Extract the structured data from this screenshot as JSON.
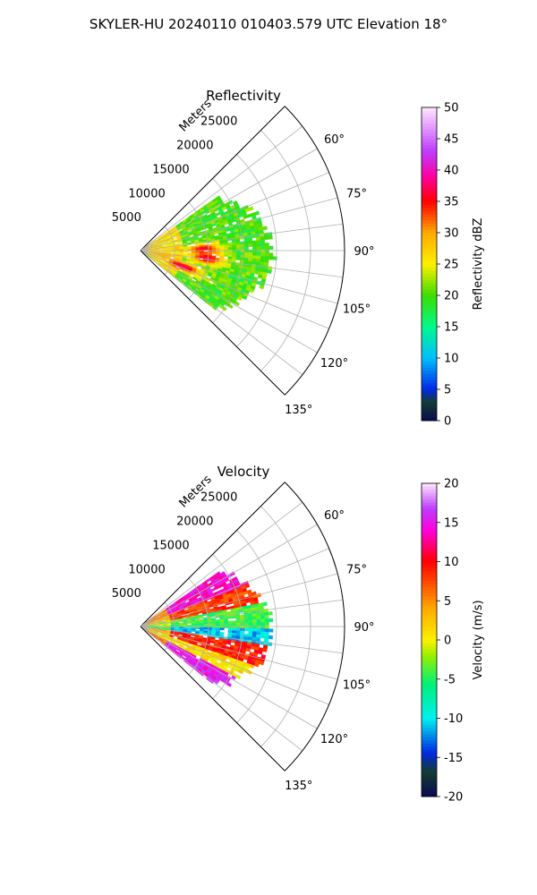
{
  "figure": {
    "title": "SKYLER-HU  20240110  010403.579 UTC Elevation 18°"
  },
  "chart_data": [
    {
      "type": "polar-sector",
      "title": "Reflectivity",
      "range_label": "Meters",
      "range_ticks": [
        5000,
        10000,
        15000,
        20000,
        25000
      ],
      "range_max": 30000,
      "azimuth_range": [
        45,
        135
      ],
      "azimuth_ticks": [
        60,
        75,
        90,
        105,
        120,
        135
      ],
      "azimuth_tick_labels": [
        "60°",
        "75°",
        "90°",
        "105°",
        "120°",
        "135°"
      ],
      "data_extent": {
        "range_max_m": 19000,
        "azimuth_min": 55,
        "azimuth_max": 128
      },
      "colorbar": {
        "label": "Reflectivity dBZ",
        "min": 0,
        "max": 50,
        "ticks": [
          0,
          5,
          10,
          15,
          20,
          25,
          30,
          35,
          40,
          45,
          50
        ],
        "colormap": "pyart_HomeyerRainbow"
      },
      "features": [
        {
          "kind": "core",
          "azimuth": 88,
          "range_m": 9000,
          "value": 36
        },
        {
          "kind": "core",
          "azimuth": 96,
          "range_m": 9500,
          "value": 37
        },
        {
          "kind": "core",
          "azimuth": 110,
          "range_m": 6500,
          "value": 38
        },
        {
          "kind": "core",
          "azimuth": 100,
          "range_m": 3000,
          "value": 30
        }
      ]
    },
    {
      "type": "polar-sector",
      "title": "Velocity",
      "range_label": "Meters",
      "range_ticks": [
        5000,
        10000,
        15000,
        20000,
        25000
      ],
      "range_max": 30000,
      "azimuth_range": [
        45,
        135
      ],
      "azimuth_ticks": [
        60,
        75,
        90,
        105,
        120,
        135
      ],
      "azimuth_tick_labels": [
        "60°",
        "75°",
        "90°",
        "105°",
        "120°",
        "135°"
      ],
      "data_extent": {
        "range_max_m": 19000,
        "azimuth_min": 55,
        "azimuth_max": 128
      },
      "colorbar": {
        "label": "Velocity (m/s)",
        "min": -20,
        "max": 20,
        "ticks": [
          -20,
          -15,
          -10,
          -5,
          0,
          5,
          10,
          15,
          20
        ],
        "colormap": "pyart_BuDRd18"
      },
      "features": [
        {
          "kind": "band",
          "azimuth_range": [
            55,
            68
          ],
          "value": 14
        },
        {
          "kind": "band",
          "azimuth_range": [
            68,
            78
          ],
          "value": 8
        },
        {
          "kind": "band",
          "azimuth_range": [
            78,
            90
          ],
          "value": -4
        },
        {
          "kind": "band",
          "azimuth_range": [
            90,
            98
          ],
          "value": -11
        },
        {
          "kind": "band",
          "azimuth_range": [
            98,
            108
          ],
          "value": 9
        },
        {
          "kind": "band",
          "azimuth_range": [
            108,
            118
          ],
          "value": 1
        },
        {
          "kind": "band",
          "azimuth_range": [
            118,
            128
          ],
          "value": 15
        }
      ]
    }
  ]
}
